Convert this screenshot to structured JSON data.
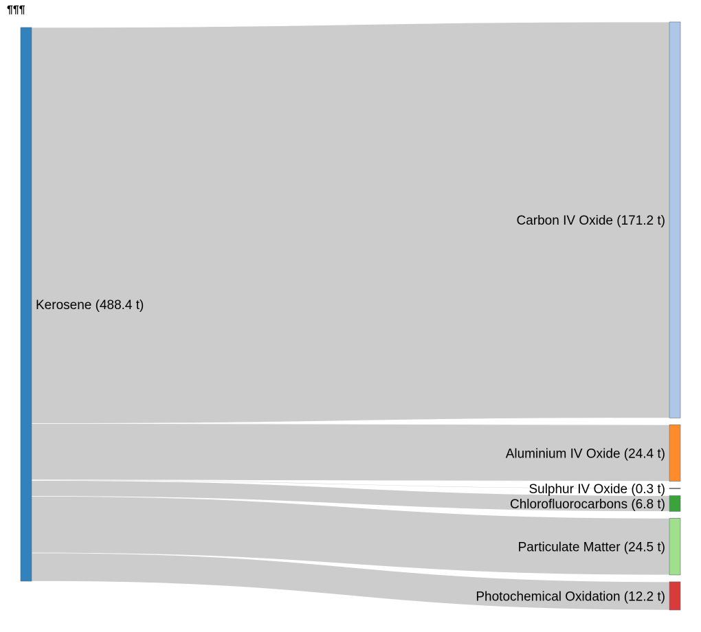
{
  "header": {
    "marks": "¶¶¶"
  },
  "units": "t",
  "colors": {
    "link": "#cccccc",
    "node_stroke": "#5a6b7a"
  },
  "sources": [
    {
      "id": "kerosene",
      "name": "Kerosene",
      "value": 488.4,
      "display": "Kerosene (488.4 t)",
      "color": "#3182bd"
    }
  ],
  "targets": [
    {
      "id": "carbon",
      "name": "Carbon IV Oxide",
      "value": 171.2,
      "display": "Carbon IV Oxide (171.2 t)",
      "color": "#aec7e8"
    },
    {
      "id": "aluminium",
      "name": "Aluminium IV Oxide",
      "value": 24.4,
      "display": "Aluminium IV Oxide (24.4 t)",
      "color": "#ff8c2a"
    },
    {
      "id": "sulphur",
      "name": "Sulphur IV Oxide",
      "value": 0.3,
      "display": "Sulphur IV Oxide (0.3 t)",
      "color": "#8c564b"
    },
    {
      "id": "cfc",
      "name": "Chlorofluorocarbons",
      "value": 6.8,
      "display": "Chlorofluorocarbons (6.8 t)",
      "color": "#3aa33a"
    },
    {
      "id": "particulate",
      "name": "Particulate Matter",
      "value": 24.5,
      "display": "Particulate Matter (24.5 t)",
      "color": "#a0e08c"
    },
    {
      "id": "photochem",
      "name": "Photochemical Oxidation",
      "value": 12.2,
      "display": "Photochemical Oxidation (12.2 t)",
      "color": "#d93a3a"
    }
  ],
  "links": [
    {
      "source": "kerosene",
      "target": "carbon",
      "value": 171.2
    },
    {
      "source": "kerosene",
      "target": "aluminium",
      "value": 24.4
    },
    {
      "source": "kerosene",
      "target": "sulphur",
      "value": 0.3
    },
    {
      "source": "kerosene",
      "target": "cfc",
      "value": 6.8
    },
    {
      "source": "kerosene",
      "target": "particulate",
      "value": 24.5
    },
    {
      "source": "kerosene",
      "target": "photochem",
      "value": 12.2
    }
  ]
}
